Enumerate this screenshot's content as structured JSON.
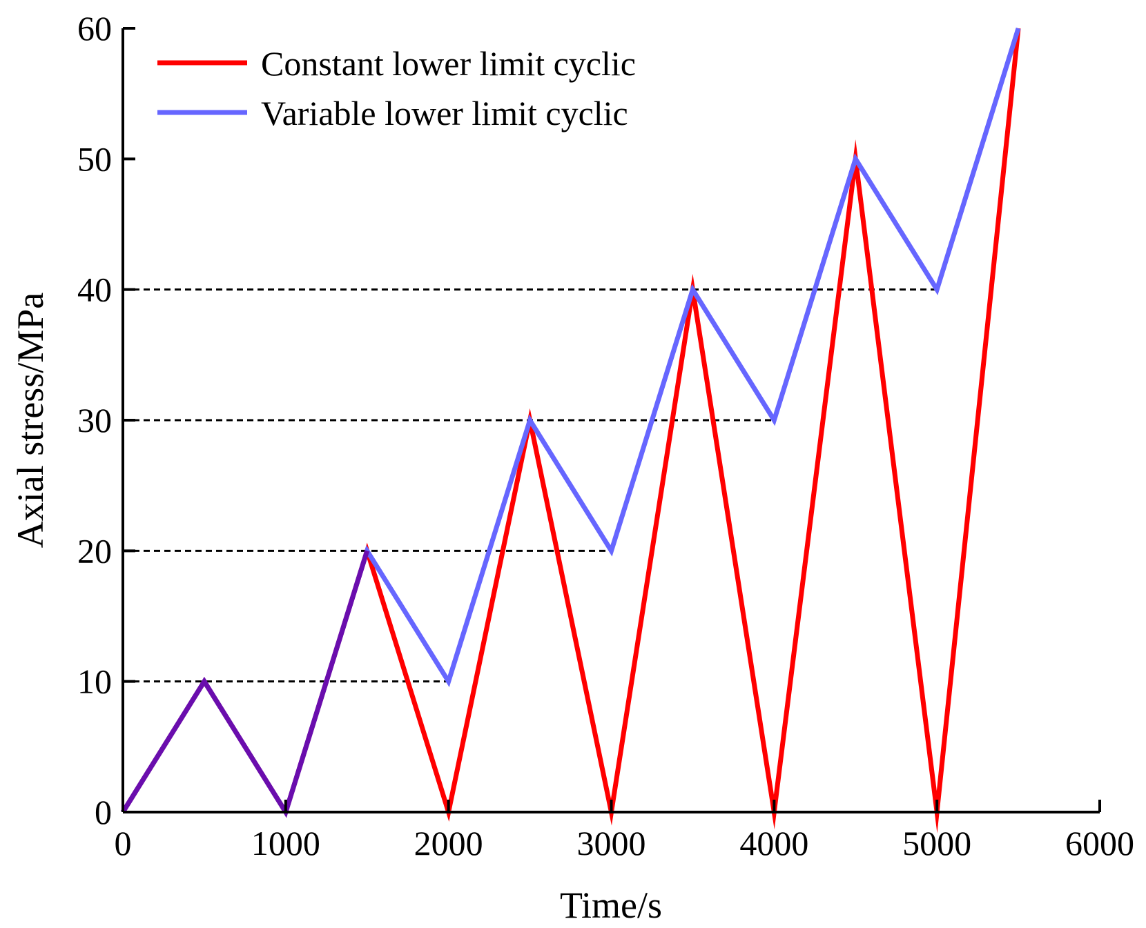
{
  "chart_data": {
    "type": "line",
    "title": "",
    "xlabel": "Time/s",
    "ylabel": "Axial stress/MPa",
    "xlim": [
      0,
      6000
    ],
    "ylim": [
      0,
      60
    ],
    "xticks": [
      0,
      1000,
      2000,
      3000,
      4000,
      5000,
      6000
    ],
    "yticks": [
      0,
      10,
      20,
      30,
      40,
      50,
      60
    ],
    "legend_position": "top-left",
    "grid": false,
    "series": [
      {
        "name": "Constant lower limit cyclic",
        "color": "#ff0000",
        "x": [
          0,
          500,
          1000,
          1500,
          2000,
          2500,
          3000,
          3500,
          4000,
          4500,
          5000,
          5500
        ],
        "y": [
          0,
          10,
          0,
          20,
          0,
          30,
          0,
          40,
          0,
          50,
          0,
          60
        ]
      },
      {
        "name": "Variable lower limit cyclic",
        "color": "#6666ff",
        "x": [
          0,
          500,
          1000,
          1500,
          2000,
          2500,
          3000,
          3500,
          4000,
          4500,
          5000,
          5500
        ],
        "y": [
          0,
          10,
          0,
          20,
          10,
          30,
          20,
          40,
          30,
          50,
          40,
          60
        ]
      }
    ],
    "overlap_color": "#6a0dad",
    "reference_lines": [
      {
        "y": 10,
        "x_end": 2000
      },
      {
        "y": 20,
        "x_end": 3000
      },
      {
        "y": 30,
        "x_end": 4000
      },
      {
        "y": 40,
        "x_end": 5000
      }
    ]
  }
}
